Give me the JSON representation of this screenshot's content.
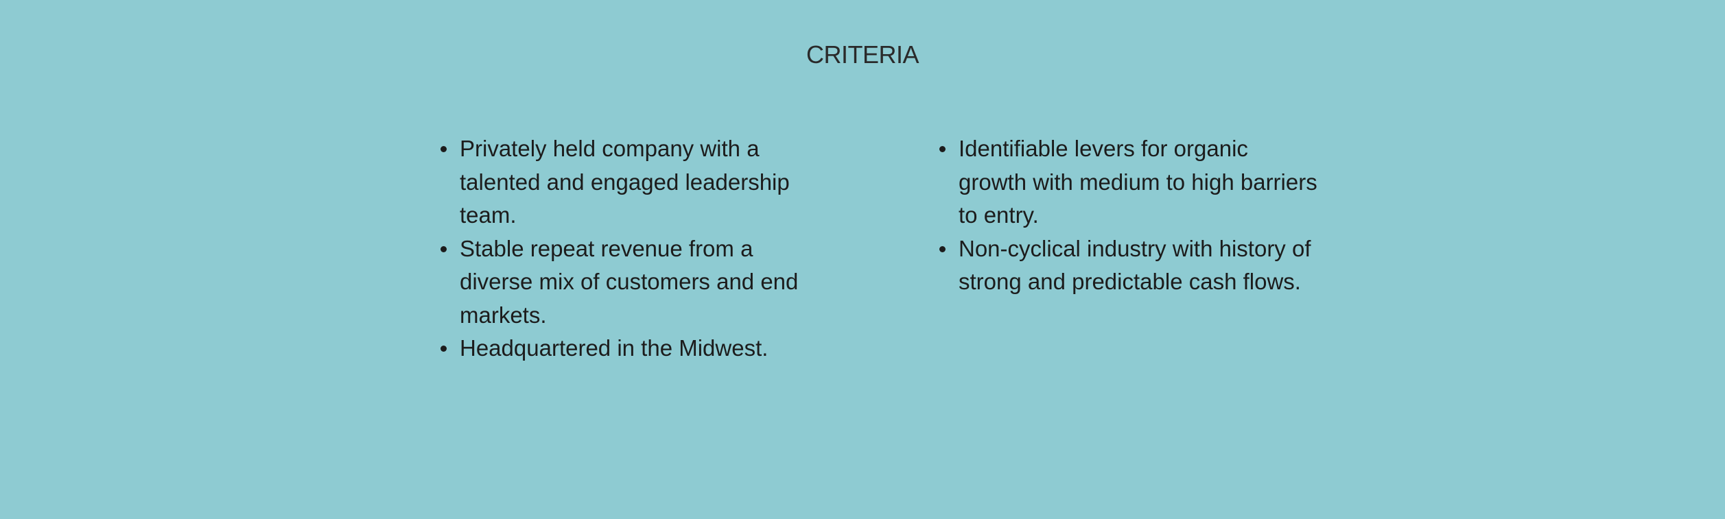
{
  "section": {
    "title": "CRITERIA",
    "colors": {
      "background": "#8ecbd2",
      "text": "#1c1c1c"
    }
  },
  "left_column": [
    "Privately held company with a talented and engaged leadership team.",
    "Stable repeat revenue from a diverse mix of customers and end markets.",
    "Headquartered in the Midwest."
  ],
  "right_column": [
    "Identifiable levers for organic growth with medium to high barriers to entry.",
    "Non-cyclical industry with history of strong and predictable cash flows."
  ]
}
